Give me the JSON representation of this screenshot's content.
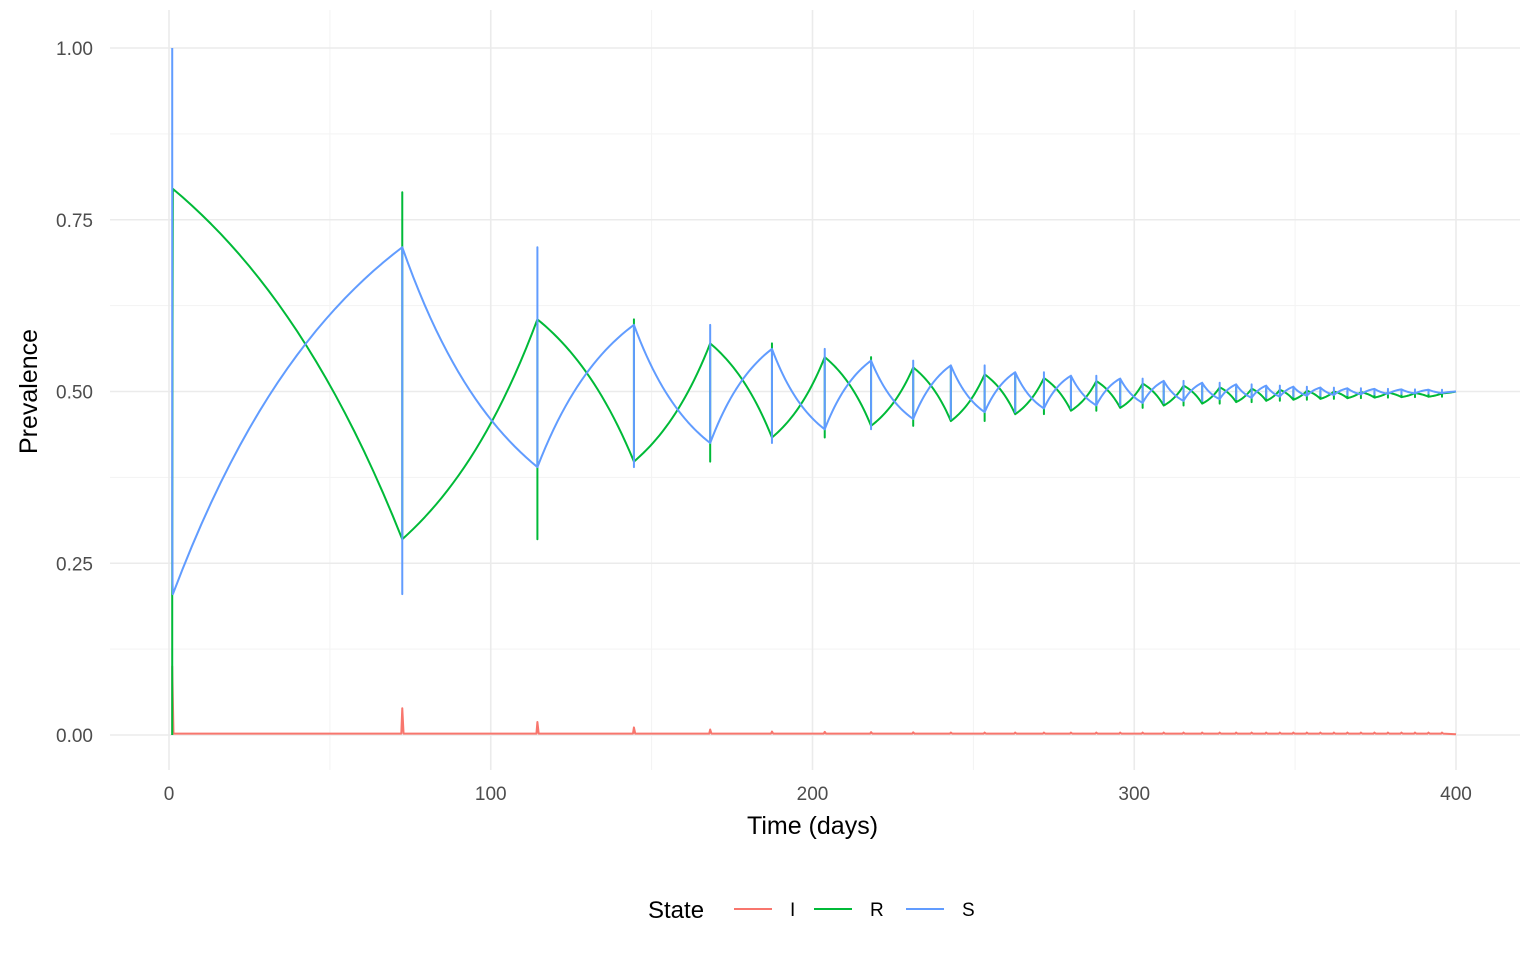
{
  "chart_data": {
    "type": "line",
    "title": "",
    "xlabel": "Time (days)",
    "ylabel": "Prevalence",
    "xlim": [
      0,
      400
    ],
    "ylim": [
      0,
      1
    ],
    "x_ticks": [
      0,
      100,
      200,
      300,
      400
    ],
    "x_tick_labels": [
      "0",
      "100",
      "200",
      "300",
      "400"
    ],
    "y_ticks": [
      0,
      0.25,
      0.5,
      0.75,
      1.0
    ],
    "y_tick_labels": [
      "0.00",
      "0.25",
      "0.50",
      "0.75",
      "1.00"
    ],
    "grid": true,
    "legend": {
      "title": "State",
      "position": "bottom",
      "entries": [
        "I",
        "R",
        "S"
      ]
    },
    "series": [
      {
        "name": "I",
        "color": "#F8766D",
        "model": "spikes",
        "points": [
          [
            0,
            0
          ],
          [
            1,
            0.1
          ],
          [
            1.4,
            0.002
          ],
          [
            72,
            0.002
          ],
          [
            72.6,
            0.037
          ],
          [
            73.2,
            0.002
          ],
          [
            114,
            0.002
          ],
          [
            114.5,
            0.017
          ],
          [
            115,
            0.002
          ],
          [
            144,
            0.002
          ],
          [
            144.5,
            0.009
          ],
          [
            145,
            0.002
          ],
          [
            168,
            0.002
          ],
          [
            168.4,
            0.006
          ],
          [
            169,
            0.002
          ],
          [
            400,
            0.001
          ]
        ]
      },
      {
        "name": "R",
        "color": "#00BA38",
        "values_at_switch_times": [
          [
            1.2,
            0.795,
            "peak"
          ],
          [
            72.5,
            0.29,
            "trough"
          ],
          [
            114.5,
            0.61,
            "peak"
          ],
          [
            144.5,
            0.4,
            "trough"
          ],
          [
            168.2,
            0.575,
            "peak"
          ],
          [
            187.4,
            0.437,
            "trough"
          ],
          [
            203.8,
            0.555,
            "peak"
          ],
          [
            218.2,
            0.455,
            "trough"
          ],
          [
            231.3,
            0.54,
            "peak"
          ],
          [
            243.0,
            0.465,
            "trough"
          ],
          [
            253.5,
            0.53,
            "peak"
          ],
          [
            263.0,
            0.472,
            "trough"
          ],
          [
            400,
            0.5,
            "end"
          ]
        ]
      },
      {
        "name": "S",
        "color": "#619CFF",
        "values_at_switch_times": [
          [
            1.0,
            1.0,
            "start"
          ],
          [
            1.2,
            0.205,
            "trough"
          ],
          [
            72.5,
            0.71,
            "peak"
          ],
          [
            114.5,
            0.39,
            "trough"
          ],
          [
            144.5,
            0.597,
            "peak"
          ],
          [
            168.2,
            0.425,
            "trough"
          ],
          [
            187.4,
            0.562,
            "peak"
          ],
          [
            203.8,
            0.445,
            "trough"
          ],
          [
            218.2,
            0.545,
            "peak"
          ],
          [
            231.3,
            0.46,
            "trough"
          ],
          [
            243.0,
            0.538,
            "peak"
          ],
          [
            253.5,
            0.47,
            "trough"
          ],
          [
            263.0,
            0.528,
            "peak"
          ],
          [
            400,
            0.5,
            "end"
          ]
        ]
      }
    ]
  }
}
